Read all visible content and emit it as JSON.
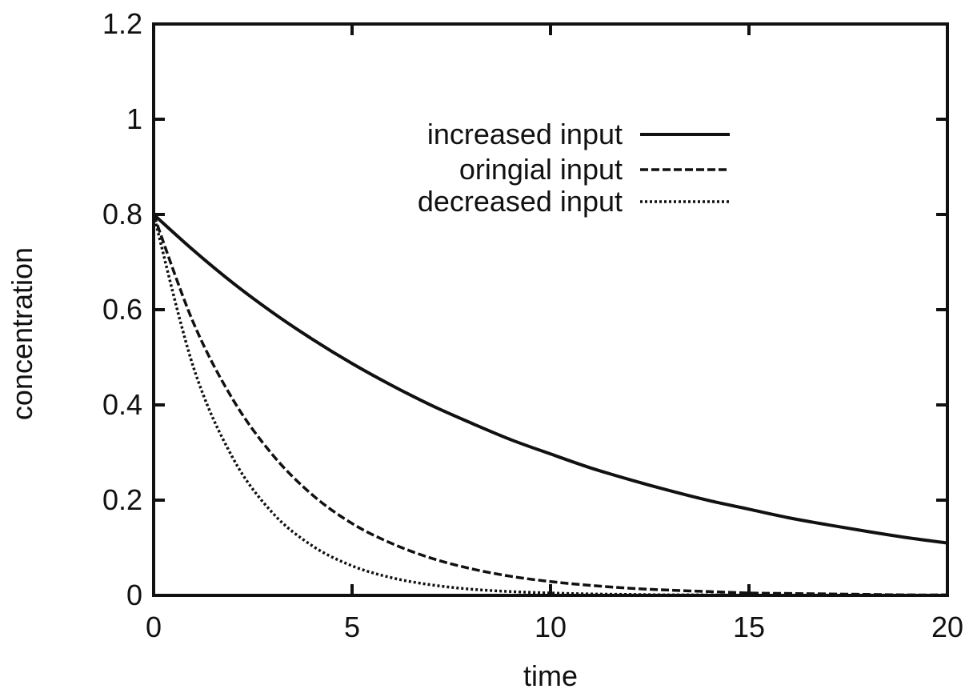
{
  "chart_data": {
    "type": "line",
    "xlabel": "time",
    "ylabel": "concentration",
    "xlim": [
      0,
      20
    ],
    "ylim": [
      0,
      1.2
    ],
    "xticks": [
      "0",
      "5",
      "10",
      "15",
      "20"
    ],
    "yticks": [
      "0",
      "0.2",
      "0.4",
      "0.6",
      "0.8",
      "1",
      "1.2"
    ],
    "xtick_values": [
      0,
      5,
      10,
      15,
      20
    ],
    "ytick_values": [
      0,
      0.2,
      0.4,
      0.6,
      0.8,
      1.0,
      1.2
    ],
    "grid": false,
    "legend_position": "top-right",
    "x": [
      0,
      1,
      2,
      3,
      4,
      5,
      6,
      7,
      8,
      9,
      10,
      11,
      12,
      13,
      14,
      15,
      16,
      17,
      18,
      19,
      20
    ],
    "series": [
      {
        "name": "increased input",
        "style": "solid",
        "color": "#111111",
        "values": [
          0.8,
          0.725,
          0.656,
          0.594,
          0.538,
          0.487,
          0.441,
          0.399,
          0.362,
          0.327,
          0.297,
          0.268,
          0.243,
          0.22,
          0.199,
          0.181,
          0.163,
          0.148,
          0.134,
          0.121,
          0.11
        ]
      },
      {
        "name": "oringial input",
        "style": "dashed",
        "color": "#111111",
        "values": [
          0.8,
          0.573,
          0.411,
          0.295,
          0.211,
          0.151,
          0.109,
          0.078,
          0.056,
          0.04,
          0.029,
          0.021,
          0.015,
          0.011,
          0.008,
          0.005,
          0.004,
          0.003,
          0.002,
          0.001,
          0.001
        ]
      },
      {
        "name": "decreased input",
        "style": "dotted",
        "color": "#111111",
        "values": [
          0.8,
          0.48,
          0.288,
          0.173,
          0.104,
          0.062,
          0.037,
          0.022,
          0.013,
          0.008,
          0.005,
          0.003,
          0.002,
          0.001,
          0.001,
          0.0,
          0.0,
          0.0,
          0.0,
          0.0,
          0.0
        ]
      }
    ]
  }
}
